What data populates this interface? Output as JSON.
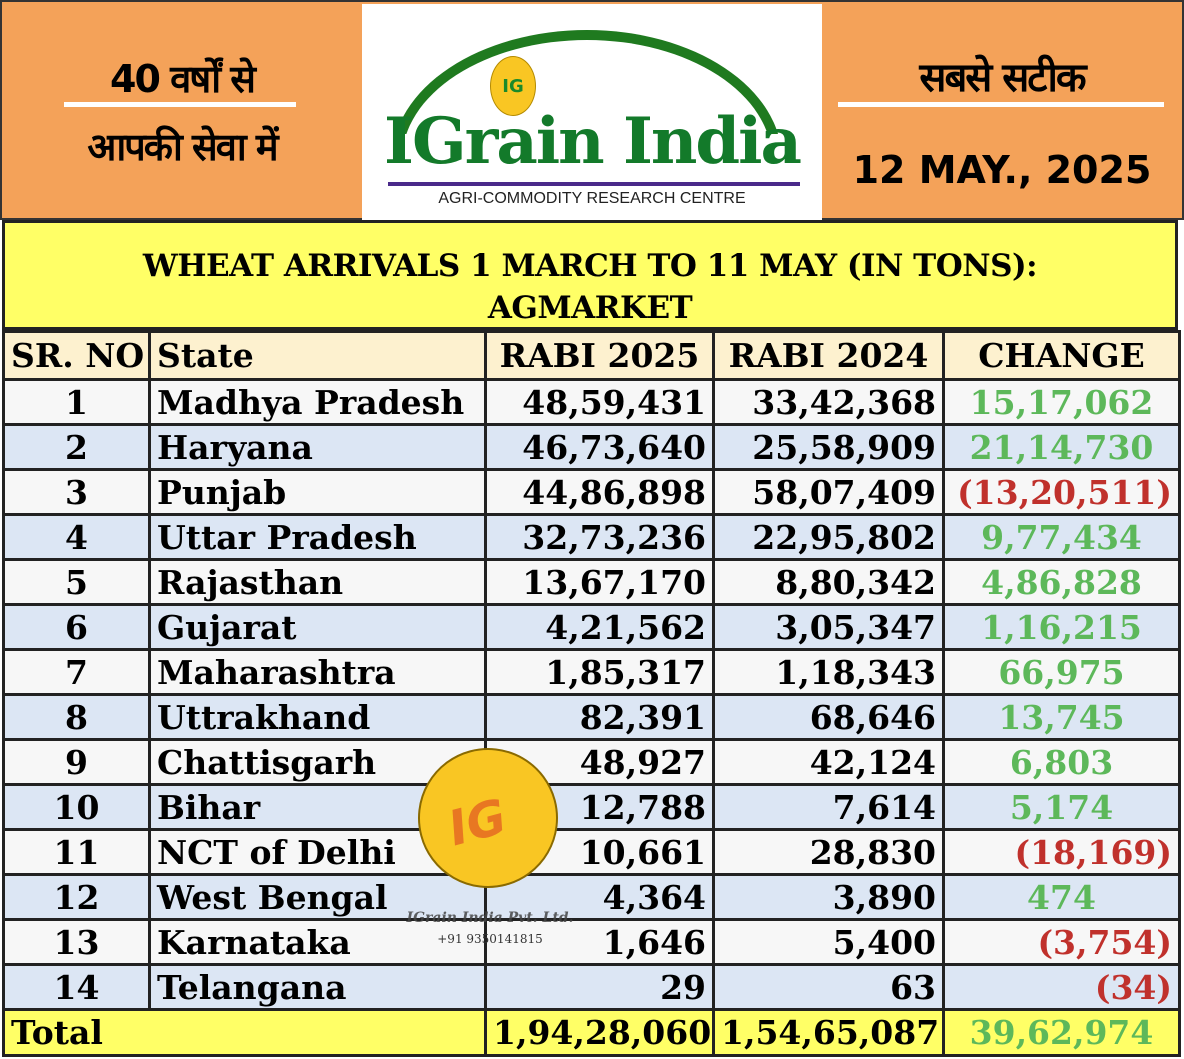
{
  "header": {
    "left_line1": "40 वर्षों से",
    "left_line2": "आपकी सेवा में",
    "logo_name": "IGrain India",
    "logo_tagline": "AGRI-COMMODITY RESEARCH CENTRE",
    "logo_badge": "IG",
    "right_line1": "सबसे सटीक",
    "date": "12 MAY., 2025"
  },
  "colors": {
    "orange": "#F4A259",
    "yellow": "#FFFF66",
    "green_change": "#5DB85A",
    "red_change": "#C0312C",
    "logo_green": "#137a2a"
  },
  "table": {
    "title_line1": "WHEAT ARRIVALS 1 MARCH TO 11 MAY (IN TONS):",
    "title_line2": "AGMARKET",
    "columns": [
      "SR. NO",
      "State",
      "RABI 2025",
      "RABI 2024",
      "CHANGE"
    ],
    "rows": [
      {
        "sr": "1",
        "state": "Madhya Pradesh",
        "rabi2025": "48,59,431",
        "rabi2024": "33,42,368",
        "change": "15,17,062",
        "negative": false
      },
      {
        "sr": "2",
        "state": "Haryana",
        "rabi2025": "46,73,640",
        "rabi2024": "25,58,909",
        "change": "21,14,730",
        "negative": false
      },
      {
        "sr": "3",
        "state": "Punjab",
        "rabi2025": "44,86,898",
        "rabi2024": "58,07,409",
        "change": "(13,20,511)",
        "negative": true
      },
      {
        "sr": "4",
        "state": "Uttar Pradesh",
        "rabi2025": "32,73,236",
        "rabi2024": "22,95,802",
        "change": "9,77,434",
        "negative": false
      },
      {
        "sr": "5",
        "state": "Rajasthan",
        "rabi2025": "13,67,170",
        "rabi2024": "8,80,342",
        "change": "4,86,828",
        "negative": false
      },
      {
        "sr": "6",
        "state": "Gujarat",
        "rabi2025": "4,21,562",
        "rabi2024": "3,05,347",
        "change": "1,16,215",
        "negative": false
      },
      {
        "sr": "7",
        "state": "Maharashtra",
        "rabi2025": "1,85,317",
        "rabi2024": "1,18,343",
        "change": "66,975",
        "negative": false
      },
      {
        "sr": "8",
        "state": "Uttrakhand",
        "rabi2025": "82,391",
        "rabi2024": "68,646",
        "change": "13,745",
        "negative": false
      },
      {
        "sr": "9",
        "state": "Chattisgarh",
        "rabi2025": "48,927",
        "rabi2024": "42,124",
        "change": "6,803",
        "negative": false
      },
      {
        "sr": "10",
        "state": "Bihar",
        "rabi2025": "12,788",
        "rabi2024": "7,614",
        "change": "5,174",
        "negative": false
      },
      {
        "sr": "11",
        "state": "NCT of Delhi",
        "rabi2025": "10,661",
        "rabi2024": "28,830",
        "change": "(18,169)",
        "negative": true
      },
      {
        "sr": "12",
        "state": "West Bengal",
        "rabi2025": "4,364",
        "rabi2024": "3,890",
        "change": "474",
        "negative": false
      },
      {
        "sr": "13",
        "state": "Karnataka",
        "rabi2025": "1,646",
        "rabi2024": "5,400",
        "change": "(3,754)",
        "negative": true
      },
      {
        "sr": "14",
        "state": "Telangana",
        "rabi2025": "29",
        "rabi2024": "63",
        "change": "(34)",
        "negative": true
      }
    ],
    "total": {
      "label": "Total",
      "rabi2025": "1,94,28,060",
      "rabi2024": "1,54,65,087",
      "change": "39,62,974"
    }
  },
  "watermark": {
    "badge": "IG",
    "company": "IGrain India Pvt. Ltd.",
    "phone": "+91 9350141815"
  }
}
